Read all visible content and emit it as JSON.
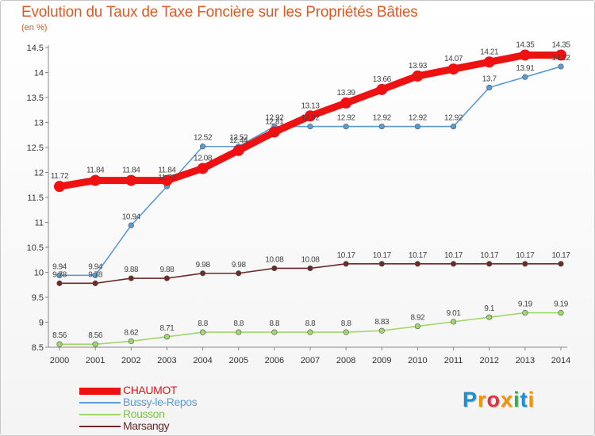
{
  "title": "Evolution du Taux de Taxe Foncière sur les Propriétés Bâties",
  "unit": "(en %)",
  "logo": {
    "letters": [
      "P",
      "r",
      "o",
      "x",
      "i",
      "t",
      "i"
    ],
    "colors": [
      "#1a8fd6",
      "#f29400",
      "#e8303b",
      "#f29400",
      "#34a853",
      "#1a8fd6",
      "#f29400"
    ]
  },
  "chart_data": {
    "type": "line",
    "title": "Evolution du Taux de Taxe Foncière sur les Propriétés Bâties",
    "ylabel": "(en %)",
    "xlabel": "",
    "x": [
      "2000",
      "2001",
      "2002",
      "2003",
      "2004",
      "2005",
      "2006",
      "2007",
      "2008",
      "2009",
      "2010",
      "2011",
      "2012",
      "2013",
      "2014"
    ],
    "ylim": [
      8.5,
      14.5
    ],
    "yticks": [
      "8.5",
      "9",
      "9.5",
      "10",
      "10.5",
      "11",
      "11.5",
      "12",
      "12.5",
      "13",
      "13.5",
      "14",
      "14.5"
    ],
    "legend_position": "bottom-left",
    "series": [
      {
        "name": "CHAUMOT",
        "color": "#ee1111",
        "values": [
          11.72,
          11.84,
          11.84,
          11.84,
          12.08,
          12.44,
          12.81,
          13.13,
          13.39,
          13.66,
          13.93,
          14.07,
          14.21,
          14.35,
          14.35
        ],
        "labels": [
          "11.72",
          "11.84",
          "11.84",
          "11.84",
          "12.08",
          "12.44",
          "12.81",
          "13.13",
          "13.39",
          "13.66",
          "13.93",
          "14.07",
          "14.21",
          "14.35",
          "14.35"
        ]
      },
      {
        "name": "Bussy-le-Repos",
        "color": "#5b9bd5",
        "values": [
          9.94,
          9.94,
          10.94,
          11.72,
          12.52,
          12.52,
          12.92,
          12.92,
          12.92,
          12.92,
          12.92,
          12.92,
          13.7,
          13.91,
          14.12
        ],
        "labels": [
          "9.94",
          "9.94",
          "10.94",
          "11.72",
          "12.52",
          "12.52",
          "12.92",
          "12.92",
          "12.92",
          "12.92",
          "12.92",
          "12.92",
          "13.7",
          "13.91",
          "14.12"
        ]
      },
      {
        "name": "Rousson",
        "color": "#9fd86a",
        "values": [
          8.56,
          8.56,
          8.62,
          8.71,
          8.8,
          8.8,
          8.8,
          8.8,
          8.8,
          8.83,
          8.92,
          9.01,
          9.1,
          9.19,
          9.19
        ],
        "labels": [
          "8.56",
          "8.56",
          "8.62",
          "8.71",
          "8.8",
          "8.8",
          "8.8",
          "8.8",
          "8.8",
          "8.83",
          "8.92",
          "9.01",
          "9.1",
          "9.19",
          "9.19"
        ]
      },
      {
        "name": "Marsangy",
        "color": "#6b2a2a",
        "values": [
          9.78,
          9.78,
          9.88,
          9.88,
          9.98,
          9.98,
          10.08,
          10.08,
          10.17,
          10.17,
          10.17,
          10.17,
          10.17,
          10.17,
          10.17
        ],
        "labels": [
          "9.78",
          "9.78",
          "9.88",
          "9.88",
          "9.98",
          "9.98",
          "10.08",
          "10.08",
          "10.17",
          "10.17",
          "10.17",
          "10.17",
          "10.17",
          "10.17",
          "10.17"
        ]
      }
    ]
  }
}
